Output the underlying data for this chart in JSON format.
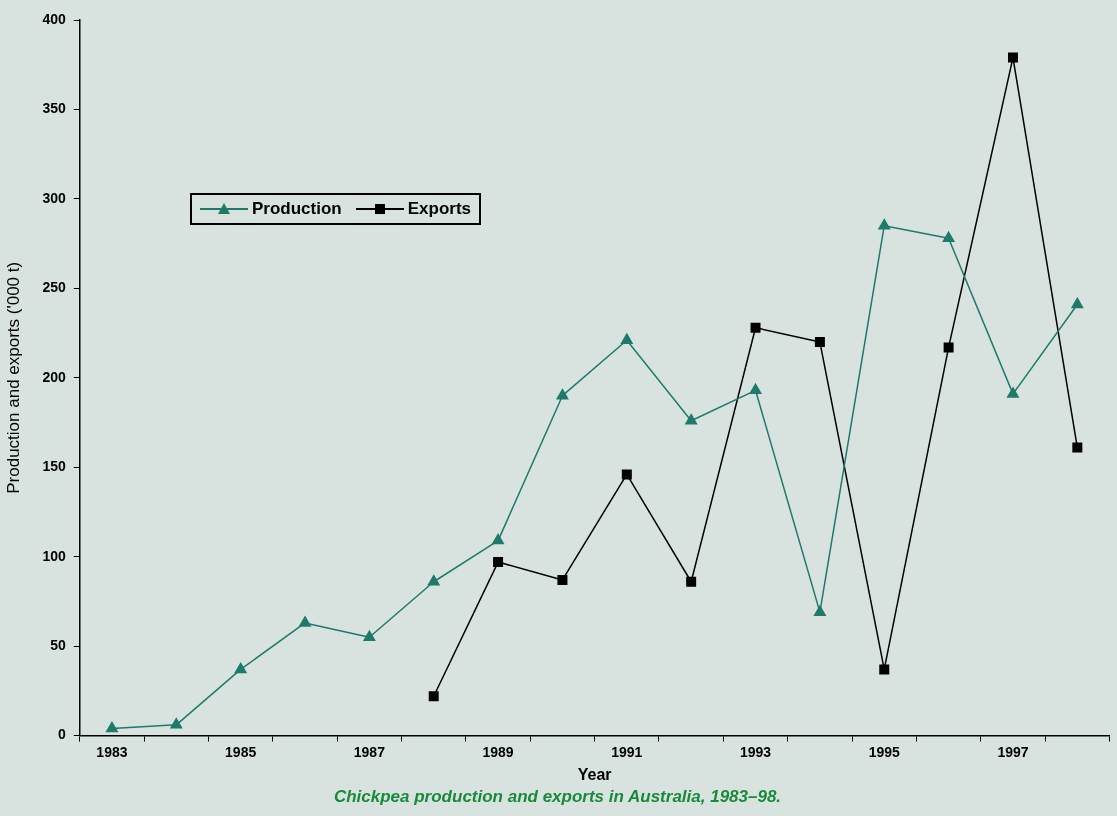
{
  "chart_data": {
    "type": "line",
    "title": "Chickpea production and exports in Australia, 1983–98.",
    "xlabel": "Year",
    "ylabel": "Production and exports ('000 t)",
    "categories": [
      "1983",
      null,
      "1985",
      null,
      "1987",
      null,
      "1989",
      null,
      "1991",
      null,
      "1993",
      null,
      "1995",
      null,
      "1997",
      null
    ],
    "series": [
      {
        "name": "Production",
        "color": "#1f7a6b",
        "marker": "triangle",
        "values": [
          4,
          6,
          37,
          63,
          55,
          86,
          109,
          190,
          221,
          176,
          193,
          69,
          285,
          278,
          191,
          241
        ]
      },
      {
        "name": "Exports",
        "color": "#000000",
        "marker": "square",
        "values": [
          null,
          null,
          null,
          null,
          null,
          22,
          97,
          87,
          146,
          86,
          228,
          220,
          37,
          217,
          379,
          161
        ]
      }
    ],
    "ylim": [
      0,
      400
    ],
    "yticks": [
      0,
      50,
      100,
      150,
      200,
      250,
      300,
      350,
      400
    ],
    "grid": false,
    "legend": "top left",
    "line_style": "solid"
  }
}
